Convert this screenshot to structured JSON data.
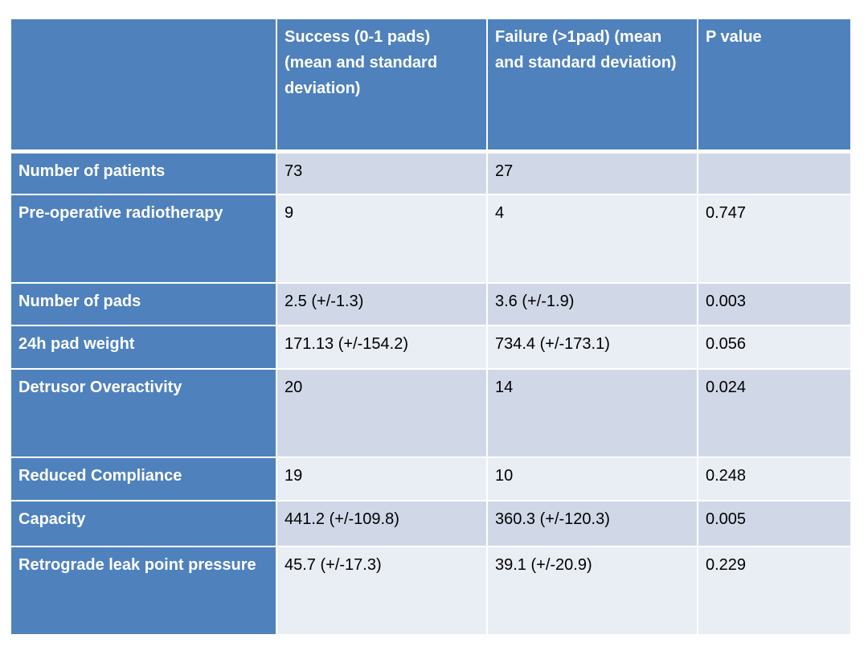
{
  "table": {
    "headers": [
      "",
      "Success (0-1 pads) (mean and standard deviation)",
      "Failure (>1pad) (mean and standard deviation)",
      "P value"
    ],
    "rows": [
      {
        "label": "Number of patients",
        "success": "73",
        "failure": "27",
        "p": ""
      },
      {
        "label": "Pre-operative radiotherapy",
        "success": "9",
        "failure": "4",
        "p": "0.747"
      },
      {
        "label": "Number of pads",
        "success": "2.5 (+/-1.3)",
        "failure": "3.6 (+/-1.9)",
        "p": "0.003"
      },
      {
        "label": "24h pad weight",
        "success": "171.13 (+/-154.2)",
        "failure": "734.4 (+/-173.1)",
        "p": "0.056"
      },
      {
        "label": "Detrusor  Overactivity",
        "success": "20",
        "failure": "14",
        "p": "0.024"
      },
      {
        "label": "Reduced Compliance",
        "success": "19",
        "failure": "10",
        "p": "0.248"
      },
      {
        "label": "Capacity",
        "success": "441.2 (+/-109.8)",
        "failure": "360.3 (+/-120.3)",
        "p": "0.005"
      },
      {
        "label": "Retrograde leak point pressure",
        "success": "45.7 (+/-17.3)",
        "failure": "39.1 (+/-20.9)",
        "p": "0.229"
      }
    ]
  },
  "colors": {
    "header_bg": "#4f81bd",
    "row_odd": "#d0d8e8",
    "row_even": "#e9edf4"
  }
}
